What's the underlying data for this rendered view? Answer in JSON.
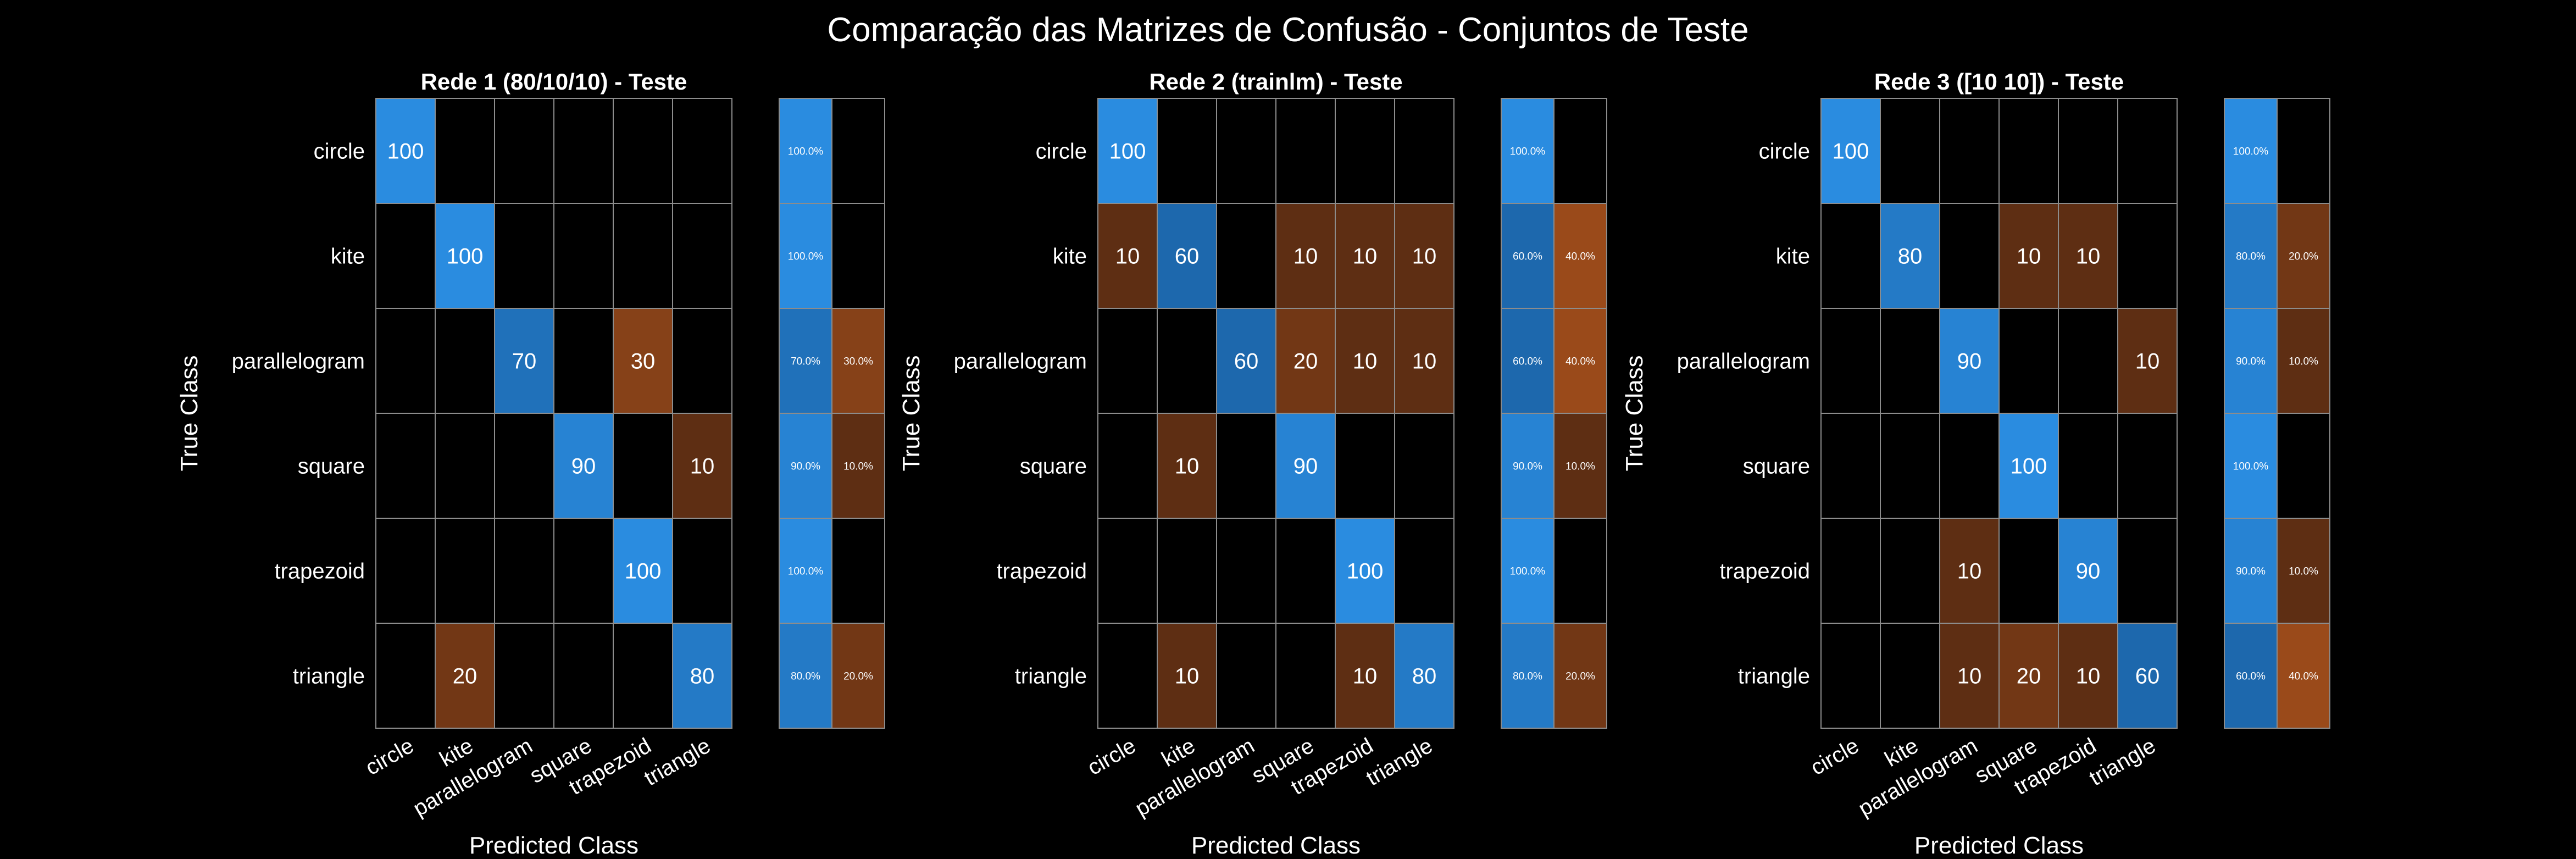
{
  "figure": {
    "title": "Comparação das Matrizes de Confusão - Conjuntos de Teste"
  },
  "colors": {
    "background": "#000000",
    "gridline": "#8c8c8c",
    "correct_high": "#2a8ce0",
    "correct_low": "#1a5fa0",
    "error_high": "#9a4a1a",
    "error_low": "#4a2410"
  },
  "chart_data": [
    {
      "type": "heatmap",
      "title": "Rede 1 (80/10/10) - Teste",
      "xlabel": "Predicted Class",
      "ylabel": "True Class",
      "classes": [
        "circle",
        "kite",
        "parallelogram",
        "square",
        "trapezoid",
        "triangle"
      ],
      "matrix": [
        [
          100,
          0,
          0,
          0,
          0,
          0
        ],
        [
          0,
          100,
          0,
          0,
          0,
          0
        ],
        [
          0,
          0,
          70,
          0,
          30,
          0
        ],
        [
          0,
          0,
          0,
          90,
          0,
          10
        ],
        [
          0,
          0,
          0,
          0,
          100,
          0
        ],
        [
          0,
          20,
          0,
          0,
          0,
          80
        ]
      ],
      "row_summary": [
        [
          "100.0%",
          ""
        ],
        [
          "100.0%",
          ""
        ],
        [
          "70.0%",
          "30.0%"
        ],
        [
          "90.0%",
          "10.0%"
        ],
        [
          "100.0%",
          ""
        ],
        [
          "80.0%",
          "20.0%"
        ]
      ]
    },
    {
      "type": "heatmap",
      "title": "Rede 2 (trainlm) - Teste",
      "xlabel": "Predicted Class",
      "ylabel": "True Class",
      "classes": [
        "circle",
        "kite",
        "parallelogram",
        "square",
        "trapezoid",
        "triangle"
      ],
      "matrix": [
        [
          100,
          0,
          0,
          0,
          0,
          0
        ],
        [
          10,
          60,
          0,
          10,
          10,
          10
        ],
        [
          0,
          0,
          60,
          20,
          10,
          10
        ],
        [
          0,
          10,
          0,
          90,
          0,
          0
        ],
        [
          0,
          0,
          0,
          0,
          100,
          0
        ],
        [
          0,
          10,
          0,
          0,
          10,
          80
        ]
      ],
      "row_summary": [
        [
          "100.0%",
          ""
        ],
        [
          "60.0%",
          "40.0%"
        ],
        [
          "60.0%",
          "40.0%"
        ],
        [
          "90.0%",
          "10.0%"
        ],
        [
          "100.0%",
          ""
        ],
        [
          "80.0%",
          "20.0%"
        ]
      ]
    },
    {
      "type": "heatmap",
      "title": "Rede 3 ([10 10]) - Teste",
      "xlabel": "Predicted Class",
      "ylabel": "True Class",
      "classes": [
        "circle",
        "kite",
        "parallelogram",
        "square",
        "trapezoid",
        "triangle"
      ],
      "matrix": [
        [
          100,
          0,
          0,
          0,
          0,
          0
        ],
        [
          0,
          80,
          0,
          10,
          10,
          0
        ],
        [
          0,
          0,
          90,
          0,
          0,
          10
        ],
        [
          0,
          0,
          0,
          100,
          0,
          0
        ],
        [
          0,
          0,
          10,
          0,
          90,
          0
        ],
        [
          0,
          0,
          10,
          20,
          10,
          60
        ]
      ],
      "row_summary": [
        [
          "100.0%",
          ""
        ],
        [
          "80.0%",
          "20.0%"
        ],
        [
          "90.0%",
          "10.0%"
        ],
        [
          "100.0%",
          ""
        ],
        [
          "90.0%",
          "10.0%"
        ],
        [
          "60.0%",
          "40.0%"
        ]
      ]
    }
  ]
}
